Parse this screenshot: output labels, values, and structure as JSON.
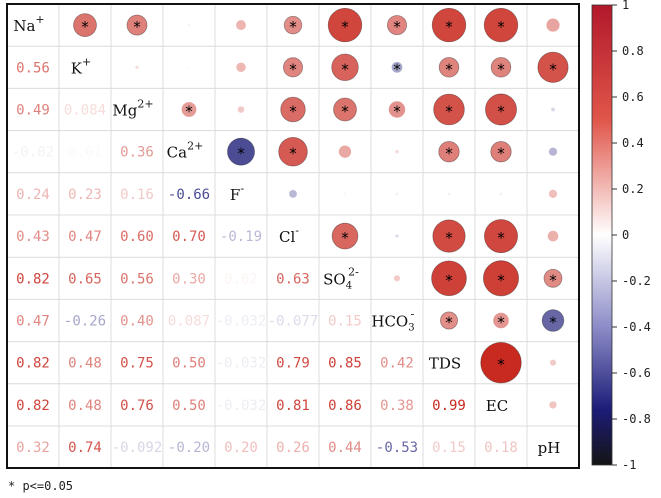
{
  "chart_data": {
    "type": "heatmap",
    "title": "",
    "variables": [
      "Na+",
      "K+",
      "Mg2+",
      "Ca2+",
      "F-",
      "Cl-",
      "SO42-",
      "HCO3-",
      "TDS",
      "EC",
      "pH"
    ],
    "variable_display": [
      {
        "main": "Na",
        "sup": "+",
        "sub": ""
      },
      {
        "main": "K",
        "sup": "+",
        "sub": ""
      },
      {
        "main": "Mg",
        "sup": "2+",
        "sub": ""
      },
      {
        "main": "Ca",
        "sup": "2+",
        "sub": ""
      },
      {
        "main": "F",
        "sup": "-",
        "sub": ""
      },
      {
        "main": "Cl",
        "sup": "-",
        "sub": ""
      },
      {
        "main": "SO",
        "sup": "2-",
        "sub": "4"
      },
      {
        "main": "HCO",
        "sup": "-",
        "sub": "3"
      },
      {
        "main": "TDS",
        "sup": "",
        "sub": ""
      },
      {
        "main": "EC",
        "sup": "",
        "sub": ""
      },
      {
        "main": "pH",
        "sup": "",
        "sub": ""
      }
    ],
    "matrix": [
      [
        1,
        0.56,
        0.49,
        -0.02,
        0.24,
        0.43,
        0.82,
        0.47,
        0.82,
        0.82,
        0.32
      ],
      [
        0.56,
        1,
        0.084,
        0.01,
        0.23,
        0.47,
        0.65,
        -0.26,
        0.48,
        0.48,
        0.74
      ],
      [
        0.49,
        0.084,
        1,
        0.36,
        0.16,
        0.6,
        0.56,
        0.4,
        0.75,
        0.76,
        -0.092
      ],
      [
        -0.02,
        0.01,
        0.36,
        1,
        -0.66,
        0.7,
        0.3,
        0.087,
        0.5,
        0.5,
        -0.2
      ],
      [
        0.24,
        0.23,
        0.16,
        -0.66,
        1,
        -0.19,
        0.02,
        -0.032,
        -0.032,
        -0.032,
        0.2
      ],
      [
        0.43,
        0.47,
        0.6,
        0.7,
        -0.19,
        1,
        0.63,
        -0.077,
        0.79,
        0.81,
        0.26
      ],
      [
        0.82,
        0.65,
        0.56,
        0.3,
        0.02,
        0.63,
        1,
        0.15,
        0.85,
        0.86,
        0.44
      ],
      [
        0.47,
        -0.26,
        0.4,
        0.087,
        -0.032,
        -0.077,
        0.15,
        1,
        0.42,
        0.38,
        -0.53
      ],
      [
        0.82,
        0.48,
        0.75,
        0.5,
        -0.032,
        0.79,
        0.85,
        0.42,
        1,
        0.99,
        0.15
      ],
      [
        0.82,
        0.48,
        0.76,
        0.5,
        -0.032,
        0.81,
        0.86,
        0.38,
        0.99,
        1,
        0.18
      ],
      [
        0.32,
        0.74,
        -0.092,
        -0.2,
        0.2,
        0.26,
        0.44,
        -0.53,
        0.15,
        0.18,
        1
      ]
    ],
    "lower_labels": [
      [
        null,
        null,
        null,
        null,
        null,
        null,
        null,
        null,
        null,
        null,
        null
      ],
      [
        "0.56",
        null,
        null,
        null,
        null,
        null,
        null,
        null,
        null,
        null,
        null
      ],
      [
        "0.49",
        "0.084",
        null,
        null,
        null,
        null,
        null,
        null,
        null,
        null,
        null
      ],
      [
        "-0.02",
        "0.01",
        "0.36",
        null,
        null,
        null,
        null,
        null,
        null,
        null,
        null
      ],
      [
        "0.24",
        "0.23",
        "0.16",
        "-0.66",
        null,
        null,
        null,
        null,
        null,
        null,
        null
      ],
      [
        "0.43",
        "0.47",
        "0.60",
        "0.70",
        "-0.19",
        null,
        null,
        null,
        null,
        null,
        null
      ],
      [
        "0.82",
        "0.65",
        "0.56",
        "0.30",
        "0.02",
        "0.63",
        null,
        null,
        null,
        null,
        null
      ],
      [
        "0.47",
        "-0.26",
        "0.40",
        "0.087",
        "-0.032",
        "-0.077",
        "0.15",
        null,
        null,
        null,
        null
      ],
      [
        "0.82",
        "0.48",
        "0.75",
        "0.50",
        "-0.032",
        "0.79",
        "0.85",
        "0.42",
        null,
        null,
        null
      ],
      [
        "0.82",
        "0.48",
        "0.76",
        "0.50",
        "-0.032",
        "0.81",
        "0.86",
        "0.38",
        "0.99",
        null,
        null
      ],
      [
        "0.32",
        "0.74",
        "-0.092",
        "-0.20",
        "0.20",
        "0.26",
        "0.44",
        "-0.53",
        "0.15",
        "0.18",
        null
      ]
    ],
    "significant": [
      [
        0,
        1
      ],
      [
        0,
        2
      ],
      [
        0,
        5
      ],
      [
        0,
        6
      ],
      [
        0,
        7
      ],
      [
        0,
        8
      ],
      [
        0,
        9
      ],
      [
        1,
        5
      ],
      [
        1,
        6
      ],
      [
        1,
        7
      ],
      [
        1,
        8
      ],
      [
        1,
        9
      ],
      [
        1,
        10
      ],
      [
        2,
        3
      ],
      [
        2,
        5
      ],
      [
        2,
        6
      ],
      [
        2,
        7
      ],
      [
        2,
        8
      ],
      [
        2,
        9
      ],
      [
        3,
        4
      ],
      [
        3,
        5
      ],
      [
        3,
        8
      ],
      [
        3,
        9
      ],
      [
        5,
        6
      ],
      [
        5,
        8
      ],
      [
        5,
        9
      ],
      [
        6,
        8
      ],
      [
        6,
        9
      ],
      [
        6,
        10
      ],
      [
        7,
        8
      ],
      [
        7,
        9
      ],
      [
        7,
        10
      ],
      [
        8,
        9
      ]
    ],
    "colorbar": {
      "range": [
        -1,
        1
      ],
      "ticks": [
        "1",
        "0.8",
        "0.6",
        "0.4",
        "0.2",
        "0",
        "-0.2",
        "-0.4",
        "-0.6",
        "-0.8",
        "-1"
      ],
      "colors": {
        "negative": "#0b0b6e",
        "neutral": "#ffffff",
        "positive": "#c8281e",
        "minimum": "#1a1a1a"
      }
    },
    "footnote": "* p<=0.05",
    "significance_marker": "*"
  }
}
